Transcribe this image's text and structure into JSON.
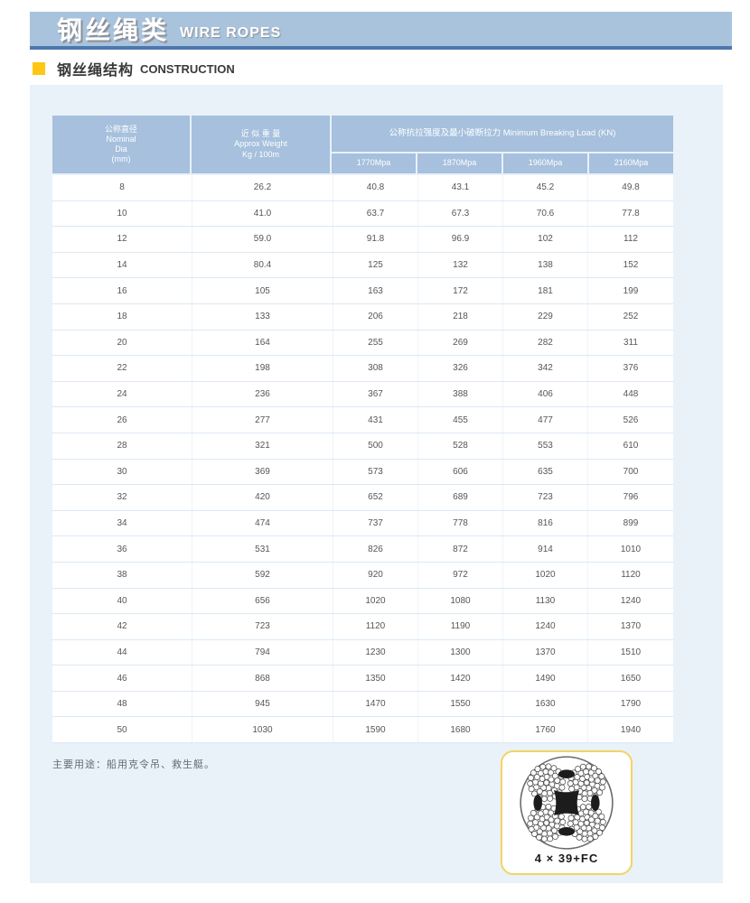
{
  "banner": {
    "title_zh": "钢丝绳类",
    "title_en": "WIRE ROPES"
  },
  "section": {
    "title_zh": "钢丝绳结构",
    "title_en": "CONSTRUCTION"
  },
  "colors": {
    "banner_bg": "#a9c3dc",
    "banner_border": "#4c78ad",
    "header_cell_bg": "#a6c0dd",
    "panel_bg": "#e9f1f9",
    "accent_yellow": "#ffc613",
    "card_border": "#f2d464"
  },
  "table": {
    "header": {
      "dia_lines": [
        "公称直径",
        "Nominal",
        "Dia",
        "(mm)"
      ],
      "weight_lines": [
        "近 似 重 量",
        "Approx Weight",
        "Kg / 100m"
      ],
      "breaking_load_title": "公称抗拉强度及最小破断拉力 Minimum Breaking Load (KN)",
      "grades": [
        "1770Mpa",
        "1870Mpa",
        "1960Mpa",
        "2160Mpa"
      ]
    },
    "rows": [
      [
        "8",
        "26.2",
        "40.8",
        "43.1",
        "45.2",
        "49.8"
      ],
      [
        "10",
        "41.0",
        "63.7",
        "67.3",
        "70.6",
        "77.8"
      ],
      [
        "12",
        "59.0",
        "91.8",
        "96.9",
        "102",
        "112"
      ],
      [
        "14",
        "80.4",
        "125",
        "132",
        "138",
        "152"
      ],
      [
        "16",
        "105",
        "163",
        "172",
        "181",
        "199"
      ],
      [
        "18",
        "133",
        "206",
        "218",
        "229",
        "252"
      ],
      [
        "20",
        "164",
        "255",
        "269",
        "282",
        "311"
      ],
      [
        "22",
        "198",
        "308",
        "326",
        "342",
        "376"
      ],
      [
        "24",
        "236",
        "367",
        "388",
        "406",
        "448"
      ],
      [
        "26",
        "277",
        "431",
        "455",
        "477",
        "526"
      ],
      [
        "28",
        "321",
        "500",
        "528",
        "553",
        "610"
      ],
      [
        "30",
        "369",
        "573",
        "606",
        "635",
        "700"
      ],
      [
        "32",
        "420",
        "652",
        "689",
        "723",
        "796"
      ],
      [
        "34",
        "474",
        "737",
        "778",
        "816",
        "899"
      ],
      [
        "36",
        "531",
        "826",
        "872",
        "914",
        "1010"
      ],
      [
        "38",
        "592",
        "920",
        "972",
        "1020",
        "1120"
      ],
      [
        "40",
        "656",
        "1020",
        "1080",
        "1130",
        "1240"
      ],
      [
        "42",
        "723",
        "1120",
        "1190",
        "1240",
        "1370"
      ],
      [
        "44",
        "794",
        "1230",
        "1300",
        "1370",
        "1510"
      ],
      [
        "46",
        "868",
        "1350",
        "1420",
        "1490",
        "1650"
      ],
      [
        "48",
        "945",
        "1470",
        "1550",
        "1630",
        "1790"
      ],
      [
        "50",
        "1030",
        "1590",
        "1680",
        "1760",
        "1940"
      ]
    ]
  },
  "note": "主要用途：船用克令吊、救生艇。",
  "diagram": {
    "label": "4 × 39+FC"
  }
}
